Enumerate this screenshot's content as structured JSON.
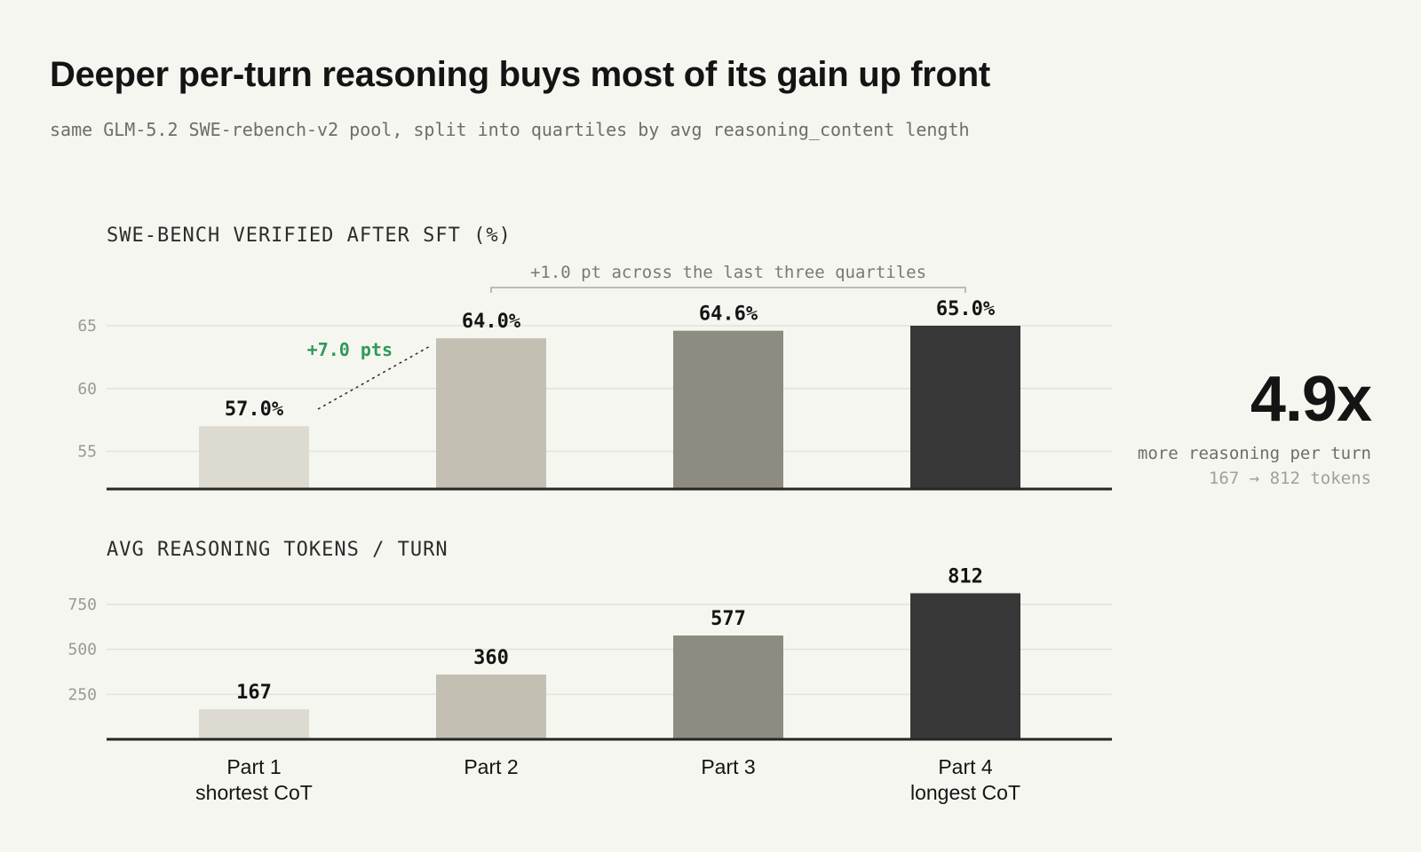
{
  "title": "Deeper per-turn reasoning buys most of its gain up front",
  "subtitle": "same GLM-5.2 SWE-rebench-v2 pool, split into quartiles by avg reasoning_content length",
  "colors": [
    "#dddbd1",
    "#c3bfb3",
    "#8e8b80",
    "#373737"
  ],
  "categories": [
    {
      "line1": "Part 1",
      "line2": "shortest CoT"
    },
    {
      "line1": "Part 2",
      "line2": ""
    },
    {
      "line1": "Part 3",
      "line2": ""
    },
    {
      "line1": "Part 4",
      "line2": "longest CoT"
    }
  ],
  "annotations": {
    "bracket_label": "+1.0 pt across the last three quartiles",
    "gain_label": "+7.0 pts"
  },
  "callout": {
    "big": "4.9x",
    "line1": "more reasoning per turn",
    "line2": "167 → 812 tokens"
  },
  "chart_data": [
    {
      "type": "bar",
      "title": "SWE-BENCH VERIFIED AFTER SFT (%)",
      "categories": [
        "Part 1",
        "Part 2",
        "Part 3",
        "Part 4"
      ],
      "values": [
        57.0,
        64.0,
        64.6,
        65.0
      ],
      "value_labels": [
        "57.0%",
        "64.0%",
        "64.6%",
        "65.0%"
      ],
      "yticks": [
        55,
        60,
        65
      ],
      "ylim": [
        52,
        65
      ]
    },
    {
      "type": "bar",
      "title": "AVG REASONING TOKENS / TURN",
      "categories": [
        "Part 1",
        "Part 2",
        "Part 3",
        "Part 4"
      ],
      "values": [
        167,
        360,
        577,
        812
      ],
      "value_labels": [
        "167",
        "360",
        "577",
        "812"
      ],
      "yticks": [
        250,
        500,
        750
      ],
      "ylim": [
        0,
        750
      ]
    }
  ]
}
